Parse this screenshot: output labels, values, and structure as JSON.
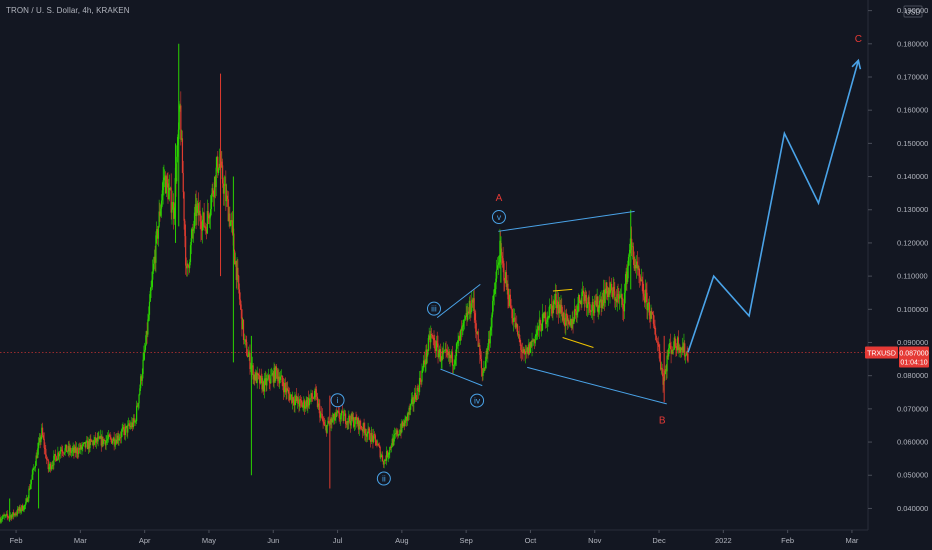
{
  "header": {
    "title": "TRON / U. S. Dollar, 4h, KRAKEN"
  },
  "colors": {
    "background": "#131722",
    "up": "#2bd200",
    "down": "#e03b2f",
    "projection": "#4aa3e8",
    "wave_label": "#4aa3e8",
    "abc_label": "#e53935",
    "yellow_triangle": "#f0c400",
    "price_line": "#e53935",
    "axis_text": "#b2b5be",
    "tag_bg": "#e53935"
  },
  "chart_data": {
    "type": "candlestick",
    "symbol": "TRXUSD",
    "interval": "4h",
    "exchange": "KRAKEN",
    "currency": "USD",
    "x_unit": "month_index (0 = 1 Jan 2021)",
    "xlim": [
      0.75,
      14.25
    ],
    "ylim": [
      0.0335,
      0.1932
    ],
    "y_ticks": [
      {
        "v": 0.04,
        "label": "0.040000"
      },
      {
        "v": 0.05,
        "label": "0.050000"
      },
      {
        "v": 0.06,
        "label": "0.060000"
      },
      {
        "v": 0.07,
        "label": "0.070000"
      },
      {
        "v": 0.08,
        "label": "0.080000"
      },
      {
        "v": 0.09,
        "label": "0.090000"
      },
      {
        "v": 0.1,
        "label": "0.100000"
      },
      {
        "v": 0.11,
        "label": "0.110000"
      },
      {
        "v": 0.12,
        "label": "0.120000"
      },
      {
        "v": 0.13,
        "label": "0.130000"
      },
      {
        "v": 0.14,
        "label": "0.140000"
      },
      {
        "v": 0.15,
        "label": "0.150000"
      },
      {
        "v": 0.16,
        "label": "0.160000"
      },
      {
        "v": 0.17,
        "label": "0.170000"
      },
      {
        "v": 0.18,
        "label": "0.180000"
      },
      {
        "v": 0.19,
        "label": "0.190000"
      }
    ],
    "x_ticks": [
      {
        "v": 1,
        "label": "Feb"
      },
      {
        "v": 2,
        "label": "Mar"
      },
      {
        "v": 3,
        "label": "Apr"
      },
      {
        "v": 4,
        "label": "May"
      },
      {
        "v": 5,
        "label": "Jun"
      },
      {
        "v": 6,
        "label": "Jul"
      },
      {
        "v": 7,
        "label": "Aug"
      },
      {
        "v": 8,
        "label": "Sep"
      },
      {
        "v": 9,
        "label": "Oct"
      },
      {
        "v": 10,
        "label": "Nov"
      },
      {
        "v": 11,
        "label": "Dec"
      },
      {
        "v": 12,
        "label": "2022"
      },
      {
        "v": 13,
        "label": "Feb"
      },
      {
        "v": 14,
        "label": "Mar"
      }
    ],
    "price_path": [
      [
        0.75,
        0.037
      ],
      [
        0.95,
        0.038
      ],
      [
        1.15,
        0.041
      ],
      [
        1.4,
        0.063
      ],
      [
        1.5,
        0.052
      ],
      [
        1.7,
        0.058
      ],
      [
        1.9,
        0.057
      ],
      [
        2.2,
        0.06
      ],
      [
        2.55,
        0.061
      ],
      [
        2.85,
        0.066
      ],
      [
        3.02,
        0.09
      ],
      [
        3.15,
        0.115
      ],
      [
        3.3,
        0.14
      ],
      [
        3.45,
        0.13
      ],
      [
        3.55,
        0.16
      ],
      [
        3.65,
        0.11
      ],
      [
        3.8,
        0.13
      ],
      [
        3.95,
        0.125
      ],
      [
        4.15,
        0.145
      ],
      [
        4.35,
        0.125
      ],
      [
        4.55,
        0.09
      ],
      [
        4.7,
        0.08
      ],
      [
        4.85,
        0.077
      ],
      [
        5.05,
        0.081
      ],
      [
        5.25,
        0.074
      ],
      [
        5.45,
        0.071
      ],
      [
        5.65,
        0.074
      ],
      [
        5.8,
        0.064
      ],
      [
        6.0,
        0.068
      ],
      [
        6.3,
        0.066
      ],
      [
        6.6,
        0.06
      ],
      [
        6.72,
        0.054
      ],
      [
        6.85,
        0.06
      ],
      [
        7.05,
        0.066
      ],
      [
        7.25,
        0.076
      ],
      [
        7.45,
        0.092
      ],
      [
        7.6,
        0.086
      ],
      [
        7.8,
        0.085
      ],
      [
        8.1,
        0.103
      ],
      [
        8.25,
        0.08
      ],
      [
        8.35,
        0.09
      ],
      [
        8.52,
        0.118
      ],
      [
        8.7,
        0.1
      ],
      [
        8.9,
        0.085
      ],
      [
        9.15,
        0.095
      ],
      [
        9.4,
        0.103
      ],
      [
        9.6,
        0.094
      ],
      [
        9.8,
        0.105
      ],
      [
        10.0,
        0.1
      ],
      [
        10.2,
        0.106
      ],
      [
        10.45,
        0.102
      ],
      [
        10.55,
        0.12
      ],
      [
        10.7,
        0.108
      ],
      [
        10.85,
        0.1
      ],
      [
        10.98,
        0.09
      ],
      [
        11.07,
        0.078
      ],
      [
        11.15,
        0.088
      ],
      [
        11.3,
        0.09
      ],
      [
        11.45,
        0.086
      ]
    ],
    "spikes": [
      {
        "x": 3.53,
        "high": 0.18,
        "low": 0.125
      },
      {
        "x": 3.48,
        "high": 0.15,
        "low": 0.12
      },
      {
        "x": 4.18,
        "high": 0.171,
        "low": 0.11
      },
      {
        "x": 4.38,
        "high": 0.14,
        "low": 0.084
      },
      {
        "x": 4.66,
        "high": 0.092,
        "low": 0.05
      },
      {
        "x": 5.88,
        "high": 0.074,
        "low": 0.046
      },
      {
        "x": 8.54,
        "high": 0.122,
        "low": 0.108
      },
      {
        "x": 10.56,
        "high": 0.13,
        "low": 0.106
      },
      {
        "x": 11.08,
        "high": 0.092,
        "low": 0.072
      },
      {
        "x": 1.35,
        "high": 0.052,
        "low": 0.04
      },
      {
        "x": 0.9,
        "high": 0.043,
        "low": 0.036
      }
    ],
    "current_price": {
      "value": 0.087,
      "label": "0.087000",
      "countdown": "01:04:10",
      "symbol_tag": "TRXUSD"
    },
    "projection_path": [
      [
        11.45,
        0.087
      ],
      [
        11.85,
        0.11
      ],
      [
        12.4,
        0.098
      ],
      [
        12.95,
        0.153
      ],
      [
        13.48,
        0.132
      ],
      [
        14.1,
        0.175
      ]
    ],
    "wedge_lines": [
      [
        [
          7.55,
          0.0975
        ],
        [
          8.22,
          0.1075
        ]
      ],
      [
        [
          7.6,
          0.082
        ],
        [
          8.25,
          0.077
        ]
      ],
      [
        [
          8.5,
          0.1235
        ],
        [
          10.62,
          0.1295
        ]
      ],
      [
        [
          8.95,
          0.0825
        ],
        [
          11.12,
          0.0715
        ]
      ]
    ],
    "yellow_lines": [
      [
        [
          9.35,
          0.1055
        ],
        [
          9.65,
          0.106
        ]
      ],
      [
        [
          9.5,
          0.0915
        ],
        [
          9.98,
          0.0885
        ]
      ]
    ],
    "wave_labels": [
      {
        "text": "i",
        "x": 6.0,
        "y": 0.0726
      },
      {
        "text": "ii",
        "x": 6.72,
        "y": 0.049
      },
      {
        "text": "iii",
        "x": 7.5,
        "y": 0.1002
      },
      {
        "text": "iv",
        "x": 8.17,
        "y": 0.0725
      },
      {
        "text": "v",
        "x": 8.51,
        "y": 0.1278
      }
    ],
    "abc_labels": [
      {
        "text": "A",
        "x": 8.51,
        "y": 0.1335
      },
      {
        "text": "B",
        "x": 11.05,
        "y": 0.0665
      },
      {
        "text": "C",
        "x": 14.1,
        "y": 0.1815
      }
    ],
    "axis": {
      "currency": "USD"
    }
  }
}
